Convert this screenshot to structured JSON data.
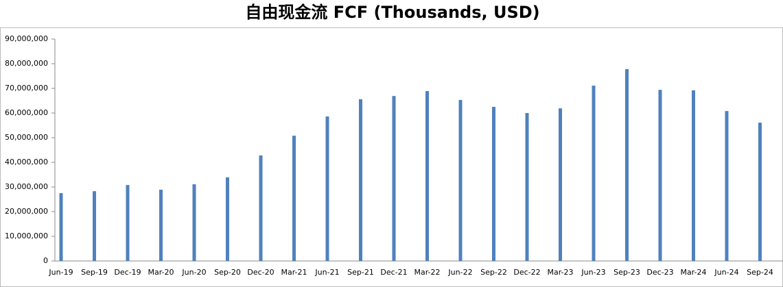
{
  "chart_data": {
    "type": "bar",
    "title": "自由现金流 FCF (Thousands, USD)",
    "categories": [
      "Jun-19",
      "Sep-19",
      "Dec-19",
      "Mar-20",
      "Jun-20",
      "Sep-20",
      "Dec-20",
      "Mar-21",
      "Jun-21",
      "Sep-21",
      "Dec-21",
      "Mar-22",
      "Jun-22",
      "Sep-22",
      "Dec-22",
      "Mar-23",
      "Jun-23",
      "Sep-23",
      "Dec-23",
      "Mar-24",
      "Jun-24",
      "Sep-24"
    ],
    "values": [
      27500000,
      28300000,
      30800000,
      28900000,
      31100000,
      33900000,
      42800000,
      50800000,
      58600000,
      65600000,
      66900000,
      68900000,
      65300000,
      62500000,
      60000000,
      61900000,
      71100000,
      77800000,
      69400000,
      69200000,
      60800000,
      56100000
    ],
    "color": "#4f81bd",
    "ylim": [
      0,
      90000000
    ],
    "yticks": [
      0,
      {
        "value": 10000000,
        "label": "10,000,000"
      },
      {
        "value": 20000000,
        "label": "20,000,000"
      },
      {
        "value": 30000000,
        "label": "30,000,000"
      },
      {
        "value": 40000000,
        "label": "40,000,000"
      },
      {
        "value": 50000000,
        "label": "50,000,000"
      },
      {
        "value": 60000000,
        "label": "60,000,000"
      },
      {
        "value": 70000000,
        "label": "70,000,000"
      },
      {
        "value": 80000000,
        "label": "80,000,000"
      },
      {
        "value": 90000000,
        "label": "90,000,000"
      }
    ],
    "grid": false
  }
}
